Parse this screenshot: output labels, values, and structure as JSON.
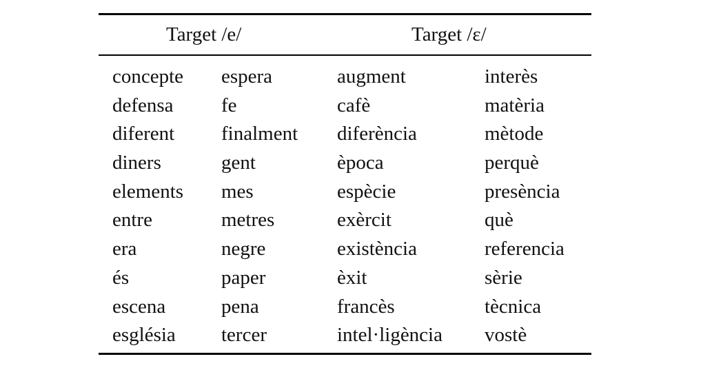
{
  "table": {
    "headers": [
      "Target /e/",
      "Target /ɛ/"
    ],
    "columns": [
      [
        "concepte",
        "defensa",
        "diferent",
        "diners",
        "elements",
        "entre",
        "era",
        "és",
        "escena",
        "església"
      ],
      [
        "espera",
        "fe",
        "finalment",
        "gent",
        "mes",
        "metres",
        "negre",
        "paper",
        "pena",
        "tercer"
      ],
      [
        "augment",
        "cafè",
        "diferència",
        "època",
        "espècie",
        "exèrcit",
        "existència",
        "èxit",
        "francès",
        "intel·ligència"
      ],
      [
        "interès",
        "matèria",
        "mètode",
        "perquè",
        "presència",
        "què",
        "referencia",
        "sèrie",
        "tècnica",
        "vostè"
      ]
    ]
  }
}
